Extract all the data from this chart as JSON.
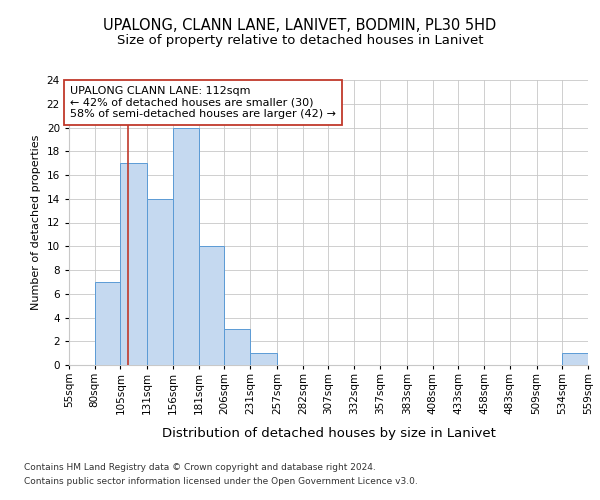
{
  "title1": "UPALONG, CLANN LANE, LANIVET, BODMIN, PL30 5HD",
  "title2": "Size of property relative to detached houses in Lanivet",
  "xlabel": "Distribution of detached houses by size in Lanivet",
  "ylabel": "Number of detached properties",
  "footnote1": "Contains HM Land Registry data © Crown copyright and database right 2024.",
  "footnote2": "Contains public sector information licensed under the Open Government Licence v3.0.",
  "bin_edges": [
    55,
    80,
    105,
    131,
    156,
    181,
    206,
    231,
    257,
    282,
    307,
    332,
    357,
    383,
    408,
    433,
    458,
    483,
    509,
    534,
    559
  ],
  "bin_labels": [
    "55sqm",
    "80sqm",
    "105sqm",
    "131sqm",
    "156sqm",
    "181sqm",
    "206sqm",
    "231sqm",
    "257sqm",
    "282sqm",
    "307sqm",
    "332sqm",
    "357sqm",
    "383sqm",
    "408sqm",
    "433sqm",
    "458sqm",
    "483sqm",
    "509sqm",
    "534sqm",
    "559sqm"
  ],
  "values": [
    0,
    7,
    17,
    14,
    20,
    10,
    3,
    1,
    0,
    0,
    0,
    0,
    0,
    0,
    0,
    0,
    0,
    0,
    0,
    1
  ],
  "bar_color": "#c5d9f0",
  "bar_edge_color": "#5b9bd5",
  "vline_x": 112,
  "vline_color": "#c0392b",
  "ylim": [
    0,
    24
  ],
  "yticks": [
    0,
    2,
    4,
    6,
    8,
    10,
    12,
    14,
    16,
    18,
    20,
    22,
    24
  ],
  "annotation_text": "UPALONG CLANN LANE: 112sqm\n← 42% of detached houses are smaller (30)\n58% of semi-detached houses are larger (42) →",
  "annotation_box_color": "#ffffff",
  "annotation_box_edge": "#c0392b",
  "title1_fontsize": 10.5,
  "title2_fontsize": 9.5,
  "xlabel_fontsize": 9.5,
  "ylabel_fontsize": 8,
  "tick_fontsize": 7.5,
  "annot_fontsize": 8,
  "footnote_fontsize": 6.5,
  "background_color": "#ffffff",
  "grid_color": "#c8c8c8"
}
